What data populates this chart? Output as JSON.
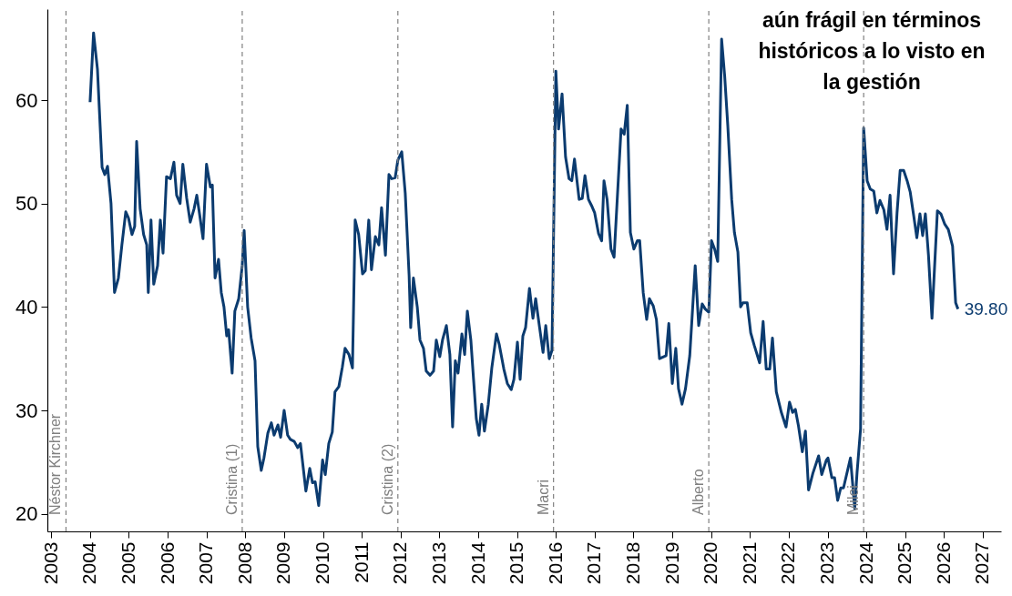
{
  "chart_data": {
    "type": "line",
    "annotations": [
      "aún frágil en términos históricos a lo visto en la gestión",
      {
        "text": "39.80",
        "x": 2026.36,
        "y": 39.8
      }
    ],
    "x": [
      2004.0,
      2004.09,
      2004.19,
      2004.31,
      2004.38,
      2004.45,
      2004.54,
      2004.63,
      2004.73,
      2004.82,
      2004.92,
      2004.99,
      2005.08,
      2005.15,
      2005.2,
      2005.29,
      2005.38,
      2005.46,
      2005.5,
      2005.57,
      2005.64,
      2005.74,
      2005.81,
      2005.88,
      2005.97,
      2006.07,
      2006.16,
      2006.23,
      2006.32,
      2006.39,
      2006.49,
      2006.58,
      2006.68,
      2006.75,
      2006.82,
      2006.91,
      2007.0,
      2007.1,
      2007.15,
      2007.22,
      2007.31,
      2007.38,
      2007.45,
      2007.52,
      2007.57,
      2007.66,
      2007.73,
      2007.83,
      2007.92,
      2007.97,
      2008.06,
      2008.15,
      2008.25,
      2008.32,
      2008.41,
      2008.48,
      2008.58,
      2008.67,
      2008.74,
      2008.84,
      2008.91,
      2009.0,
      2009.09,
      2009.16,
      2009.26,
      2009.35,
      2009.42,
      2009.49,
      2009.56,
      2009.66,
      2009.73,
      2009.8,
      2009.89,
      2009.99,
      2010.06,
      2010.15,
      2010.24,
      2010.31,
      2010.41,
      2010.5,
      2010.57,
      2010.67,
      2010.76,
      2010.83,
      2010.92,
      2011.02,
      2011.09,
      2011.18,
      2011.25,
      2011.35,
      2011.44,
      2011.51,
      2011.61,
      2011.7,
      2011.77,
      2011.86,
      2011.93,
      2012.03,
      2012.12,
      2012.22,
      2012.26,
      2012.33,
      2012.43,
      2012.5,
      2012.59,
      2012.66,
      2012.76,
      2012.85,
      2012.92,
      2013.01,
      2013.08,
      2013.18,
      2013.27,
      2013.34,
      2013.41,
      2013.48,
      2013.58,
      2013.65,
      2013.72,
      2013.81,
      2013.88,
      2013.95,
      2014.02,
      2014.09,
      2014.16,
      2014.26,
      2014.35,
      2014.47,
      2014.54,
      2014.66,
      2014.75,
      2014.85,
      2014.92,
      2015.01,
      2015.08,
      2015.15,
      2015.22,
      2015.32,
      2015.41,
      2015.48,
      2015.57,
      2015.67,
      2015.74,
      2015.83,
      2015.9,
      2016.0,
      2016.07,
      2016.16,
      2016.25,
      2016.34,
      2016.41,
      2016.48,
      2016.6,
      2016.68,
      2016.75,
      2016.84,
      2016.92,
      2017.0,
      2017.1,
      2017.18,
      2017.24,
      2017.32,
      2017.42,
      2017.5,
      2017.68,
      2017.76,
      2017.84,
      2017.92,
      2018.01,
      2018.1,
      2018.16,
      2018.25,
      2018.34,
      2018.41,
      2018.51,
      2018.59,
      2018.67,
      2018.84,
      2018.91,
      2019.0,
      2019.09,
      2019.16,
      2019.25,
      2019.34,
      2019.45,
      2019.59,
      2019.68,
      2019.77,
      2019.85,
      2019.94,
      2020.01,
      2020.09,
      2020.17,
      2020.27,
      2020.35,
      2020.43,
      2020.53,
      2020.6,
      2020.69,
      2020.76,
      2020.82,
      2020.93,
      2021.02,
      2021.11,
      2021.25,
      2021.34,
      2021.42,
      2021.51,
      2021.58,
      2021.68,
      2021.81,
      2021.93,
      2022.02,
      2022.1,
      2022.17,
      2022.25,
      2022.35,
      2022.43,
      2022.51,
      2022.62,
      2022.77,
      2022.85,
      2022.97,
      2023.01,
      2023.11,
      2023.18,
      2023.26,
      2023.34,
      2023.41,
      2023.59,
      2023.7,
      2023.76,
      2023.85,
      2023.93,
      2024.02,
      2024.1,
      2024.19,
      2024.27,
      2024.35,
      2024.45,
      2024.53,
      2024.61,
      2024.7,
      2024.79,
      2024.87,
      2024.96,
      2025.05,
      2025.13,
      2025.22,
      2025.3,
      2025.38,
      2025.45,
      2025.52,
      2025.6,
      2025.69,
      2025.83,
      2025.92,
      2026.02,
      2026.11,
      2026.22,
      2026.3,
      2026.36
    ],
    "series": [
      {
        "color": "#0b3b6f",
        "values": [
          59.8,
          66.5,
          63,
          53.5,
          52.8,
          53.6,
          50,
          41.4,
          42.8,
          46,
          49.2,
          48.6,
          47,
          47.8,
          56,
          49.5,
          47,
          46,
          41.4,
          48.4,
          42.2,
          44,
          48.4,
          45.2,
          52.6,
          52.4,
          54,
          50.8,
          50,
          53.8,
          50.5,
          48.2,
          49.5,
          50.8,
          49,
          46.6,
          53.8,
          51.6,
          51.8,
          42.8,
          44.6,
          41.4,
          40,
          37.2,
          37.8,
          33.6,
          39.6,
          40.8,
          44,
          47.4,
          40,
          37,
          34.8,
          26.5,
          24.2,
          25.4,
          27.8,
          28.8,
          27.6,
          28.6,
          27.4,
          30,
          27.6,
          27.2,
          27,
          26.4,
          26.8,
          24.5,
          22.2,
          24.4,
          23,
          23.1,
          20.8,
          25.2,
          23.8,
          26.8,
          27.9,
          31.8,
          32.3,
          34.2,
          36,
          35.4,
          34.1,
          48.4,
          47,
          43.2,
          43.5,
          48.4,
          43.6,
          46.8,
          46,
          49.6,
          45,
          52.8,
          52.4,
          52.5,
          54.2,
          55,
          51,
          43,
          38,
          42.8,
          40,
          36.8,
          36,
          33.8,
          33.4,
          33.8,
          36.8,
          35.2,
          36.8,
          38.2,
          35.4,
          28.4,
          34.8,
          33.6,
          37.4,
          35.4,
          39.6,
          36.8,
          33,
          29.2,
          27.6,
          30.6,
          28,
          30.6,
          34.1,
          37.4,
          36.4,
          34,
          32.6,
          32,
          33,
          36.6,
          33,
          37.2,
          38,
          41.8,
          38.9,
          40.8,
          38.3,
          35.6,
          38.2,
          35,
          35.8,
          62.8,
          57.2,
          60.6,
          54.5,
          52.4,
          52.2,
          54.3,
          50.4,
          50.5,
          52.7,
          50.4,
          49.8,
          49.1,
          47.1,
          46.4,
          52.2,
          50.4,
          45.6,
          44.8,
          57.2,
          56.7,
          59.5,
          47.2,
          45.6,
          46.4,
          46.4,
          41.4,
          38.8,
          40.8,
          40.1,
          38.8,
          35,
          35.3,
          38.4,
          32.6,
          36,
          32.1,
          30.6,
          32.1,
          35.3,
          44,
          38.2,
          40.3,
          39.8,
          39.5,
          46.4,
          45.6,
          44.4,
          65.9,
          62.3,
          57.5,
          50.4,
          47.2,
          45.3,
          40,
          40.4,
          40.4,
          37.5,
          36.3,
          34.6,
          38.6,
          34,
          34,
          37,
          31.8,
          29.8,
          28.4,
          30.8,
          29.8,
          30.1,
          28.5,
          26,
          28,
          22.3,
          23.9,
          25.6,
          23.8,
          25.2,
          25.4,
          23.5,
          23.5,
          21.3,
          22.5,
          22.5,
          25.4,
          20.5,
          24,
          28.2,
          57.3,
          52.2,
          51.4,
          51.2,
          49.1,
          50.3,
          49.4,
          47.5,
          50.8,
          43.2,
          49.1,
          53.2,
          53.2,
          52.2,
          51.1,
          48.8,
          46.7,
          49,
          46.9,
          49,
          45,
          38.9,
          49.3,
          49,
          48,
          47.5,
          45.9,
          40.4,
          39.8
        ]
      }
    ],
    "xlim": [
      2002.9,
      2027.47
    ],
    "xticks": [
      2003,
      2004,
      2005,
      2006,
      2007,
      2008,
      2009,
      2010,
      2011,
      2012,
      2013,
      2014,
      2015,
      2016,
      2017,
      2018,
      2019,
      2020,
      2021,
      2022,
      2023,
      2024,
      2025,
      2026,
      2027
    ],
    "ylim": [
      18.3,
      68.8
    ],
    "yticks": [
      20,
      30,
      40,
      50,
      60
    ],
    "ref_lines": [
      {
        "axis": "x",
        "value": 2003.38,
        "label": "Néstor Kirchner",
        "color": "#808080",
        "line_style": "dashed"
      },
      {
        "axis": "x",
        "value": 2007.92,
        "label": "Cristina (1)",
        "color": "#808080",
        "line_style": "dashed"
      },
      {
        "axis": "x",
        "value": 2011.93,
        "label": "Cristina (2)",
        "color": "#808080",
        "line_style": "dashed"
      },
      {
        "axis": "x",
        "value": 2015.94,
        "label": "Macri",
        "color": "#808080",
        "line_style": "dashed"
      },
      {
        "axis": "x",
        "value": 2019.94,
        "label": "Alberto",
        "color": "#808080",
        "line_style": "dashed"
      },
      {
        "axis": "x",
        "value": 2023.93,
        "label": "Milei",
        "color": "#808080",
        "line_style": "dashed"
      }
    ]
  }
}
